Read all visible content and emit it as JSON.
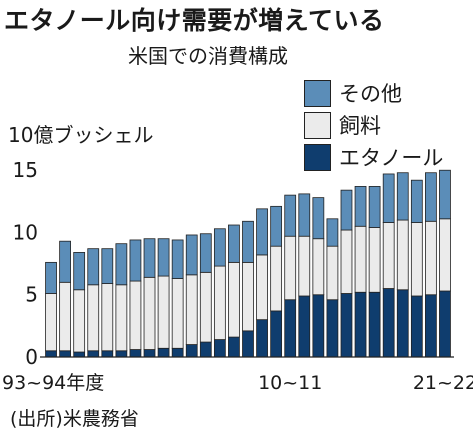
{
  "header": {
    "title": "エタノール向け需要が増えている",
    "subtitle": "米国での消費構成",
    "unit": "10億ブッシェル",
    "source": "(出所)米農務省"
  },
  "colors": {
    "ethanol": "#0f3d6e",
    "feed": "#ebebeb",
    "other": "#5b8db8",
    "edge": "#222222"
  },
  "chart_data": {
    "type": "bar",
    "stacked": true,
    "ylim": [
      0,
      15.5
    ],
    "yticks": [
      0,
      5,
      10,
      15
    ],
    "x_tick_labels": [
      "93~94年度",
      "10~11",
      "21~22"
    ],
    "x_tick_indices": [
      0,
      17,
      28
    ],
    "legend_position": "top-right",
    "grid": false,
    "categories": [
      "93~94年度",
      "",
      "",
      "",
      "",
      "",
      "",
      "",
      "",
      "",
      "",
      "",
      "",
      "",
      "",
      "",
      "",
      "10~11",
      "",
      "",
      "",
      "",
      "",
      "",
      "",
      "",
      "",
      "",
      "21~22"
    ],
    "series": [
      {
        "name": "エタノール",
        "color": "#0f3d6e",
        "values": [
          0.5,
          0.5,
          0.4,
          0.5,
          0.5,
          0.5,
          0.6,
          0.6,
          0.7,
          0.7,
          1.0,
          1.2,
          1.4,
          1.6,
          2.1,
          3.0,
          3.7,
          4.6,
          4.9,
          5.0,
          4.6,
          5.1,
          5.2,
          5.2,
          5.5,
          5.4,
          4.9,
          5.0,
          5.3
        ]
      },
      {
        "name": "飼料",
        "color": "#ebebeb",
        "values": [
          4.6,
          5.5,
          5.0,
          5.3,
          5.4,
          5.3,
          5.5,
          5.8,
          5.8,
          5.6,
          5.6,
          5.6,
          5.9,
          6.0,
          5.5,
          5.2,
          5.2,
          5.1,
          4.8,
          4.5,
          4.3,
          5.1,
          5.3,
          5.2,
          5.3,
          5.6,
          5.9,
          5.9,
          5.8
        ]
      },
      {
        "name": "その他",
        "color": "#5b8db8",
        "values": [
          2.5,
          3.3,
          3.0,
          2.9,
          2.8,
          3.3,
          3.3,
          3.1,
          3.0,
          3.1,
          3.2,
          3.1,
          3.0,
          3.0,
          3.3,
          3.7,
          3.2,
          3.3,
          3.4,
          3.3,
          2.2,
          3.2,
          3.2,
          3.3,
          3.9,
          3.8,
          3.4,
          3.9,
          3.9
        ]
      }
    ]
  }
}
